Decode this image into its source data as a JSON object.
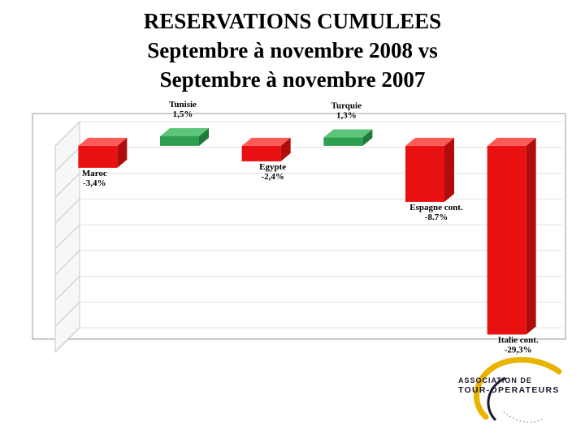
{
  "title": {
    "line1": "RESERVATIONS CUMULEES",
    "line2": "Septembre à novembre 2008 vs",
    "line3": "Septembre à novembre 2007"
  },
  "chart_data": {
    "type": "bar",
    "title": "RESERVATIONS CUMULEES Septembre à novembre 2008 vs Septembre à novembre 2007",
    "xlabel": "",
    "ylabel": "",
    "categories": [
      "Maroc",
      "Tunisie",
      "Egypte",
      "Turquie",
      "Espagne cont.",
      "Italie cont."
    ],
    "values": [
      -3.4,
      1.5,
      -2.4,
      1.3,
      -8.7,
      -29.3
    ],
    "value_labels": [
      "-3,4%",
      "1,5%",
      "-2,4%",
      "1,3%",
      "-8.7%",
      "-29,3%"
    ],
    "ylim": [
      -30,
      2
    ],
    "grid": true,
    "legend": "none",
    "colors": {
      "positive": "#2e9e4f",
      "negative": "#e81010"
    }
  },
  "logo": {
    "line1": "ASSOCIATION DE",
    "line2": "TOUR-OPERATEURS",
    "colors": {
      "gold": "#e8b400",
      "dark": "#1a1a2e",
      "red": "#d0021b"
    }
  }
}
